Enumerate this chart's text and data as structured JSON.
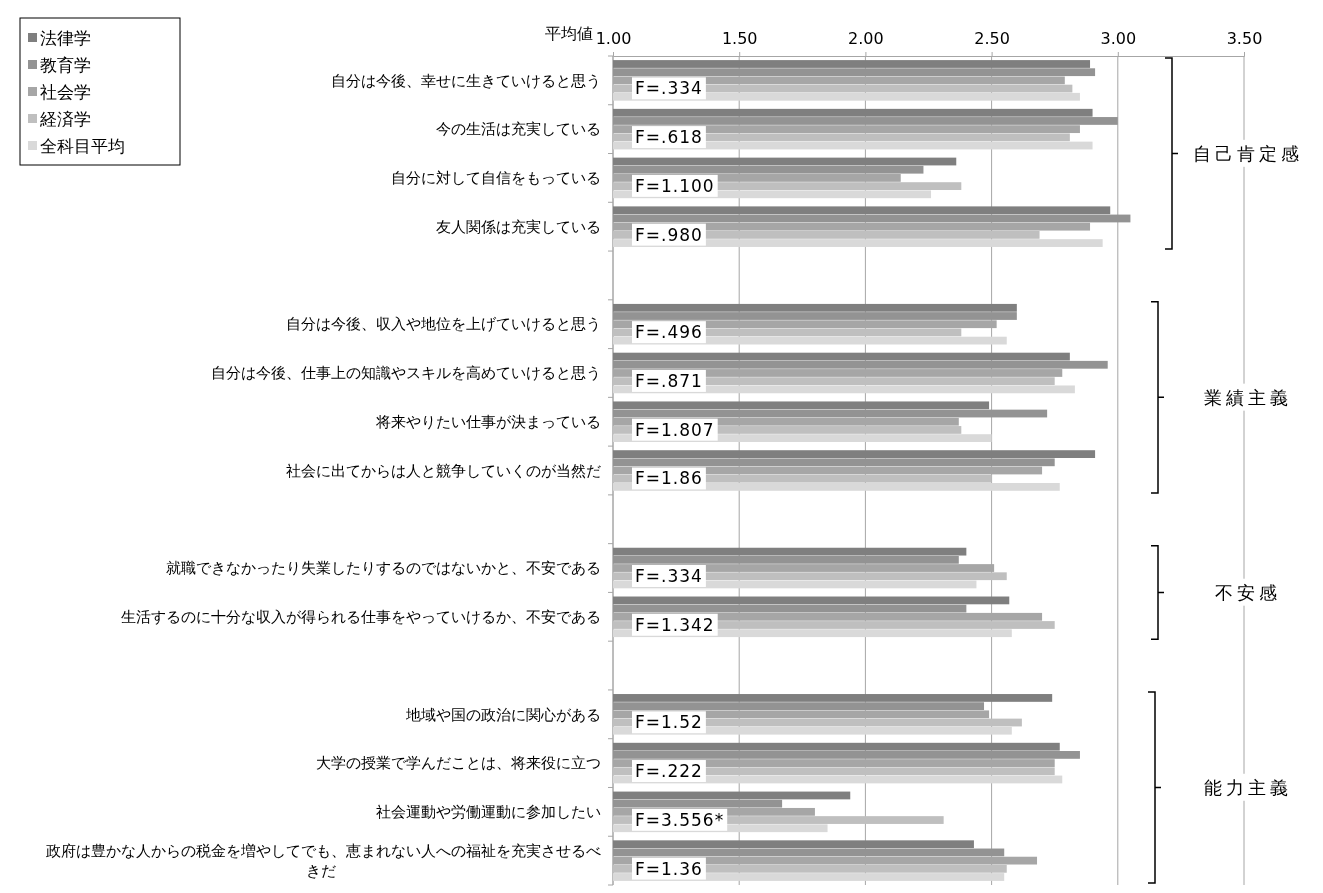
{
  "chart_data": {
    "type": "bar",
    "orientation": "horizontal",
    "xlabel": "平均値",
    "categories": [
      "自分は今後、幸せに生きていけると思う",
      "今の生活は充実している",
      "自分に対して自信をもっている",
      "友人関係は充実している",
      null,
      "自分は今後、収入や地位を上げていけると思う",
      "自分は今後、仕事上の知識やスキルを高めていけると思う",
      "将来やりたい仕事が決まっている",
      "社会に出てからは人と競争していくのが当然だ",
      null,
      "就職できなかったり失業したりするのではないかと、不安である",
      "生活するのに十分な収入が得られる仕事をやっていけるか、不安である",
      null,
      "地域や国の政治に関心がある",
      "大学の授業で学んだことは、将来役に立つ",
      "社会運動や労働運動に参加したい",
      "政府は豊かな人からの税金を増やしてでも、恵まれない人への福祉を充実させるべきだ"
    ],
    "series": [
      {
        "name": "法律学",
        "color": "#7f7f7f",
        "values": [
          2.89,
          2.9,
          2.36,
          2.97,
          null,
          2.6,
          2.81,
          2.49,
          2.91,
          null,
          2.4,
          2.57,
          null,
          2.74,
          2.77,
          1.94,
          2.43
        ]
      },
      {
        "name": "教育学",
        "color": "#939393",
        "values": [
          2.91,
          3.0,
          2.23,
          3.05,
          null,
          2.6,
          2.96,
          2.72,
          2.75,
          null,
          2.37,
          2.4,
          null,
          2.47,
          2.85,
          1.67,
          2.55
        ]
      },
      {
        "name": "社会学",
        "color": "#a6a6a6",
        "values": [
          2.79,
          2.85,
          2.14,
          2.89,
          null,
          2.52,
          2.78,
          2.37,
          2.7,
          null,
          2.51,
          2.7,
          null,
          2.49,
          2.75,
          1.8,
          2.68
        ]
      },
      {
        "name": "経済学",
        "color": "#bfbfbf",
        "values": [
          2.82,
          2.81,
          2.38,
          2.69,
          null,
          2.38,
          2.75,
          2.38,
          2.5,
          null,
          2.56,
          2.75,
          null,
          2.62,
          2.75,
          2.31,
          2.56
        ]
      },
      {
        "name": "全科目平均",
        "color": "#d9d9d9",
        "values": [
          2.85,
          2.9,
          2.26,
          2.94,
          null,
          2.56,
          2.83,
          2.5,
          2.77,
          null,
          2.44,
          2.58,
          null,
          2.58,
          2.78,
          1.85,
          2.55
        ]
      }
    ],
    "xlim": [
      1,
      3.5
    ],
    "xticks": [
      {
        "value": 1,
        "label": "1.00"
      },
      {
        "value": 1.5,
        "label": "1.50"
      },
      {
        "value": 2,
        "label": "2.00"
      },
      {
        "value": 2.5,
        "label": "2.50"
      },
      {
        "value": 3,
        "label": "3.00"
      },
      {
        "value": 3.5,
        "label": "3.50"
      }
    ],
    "grid": "x",
    "legend": "top left",
    "annotations": [
      "F=.334",
      "F=.618",
      "F=1.100",
      "F=.980",
      "F=.496",
      "F=.871",
      "F=1.807",
      "F=1.86",
      "F=.334",
      "F=1.342",
      "F=1.52",
      "F=.222",
      "F=3.556*",
      "F=1.36",
      "自己肯定感",
      "業績主義",
      "不安感",
      "能力主義"
    ]
  }
}
